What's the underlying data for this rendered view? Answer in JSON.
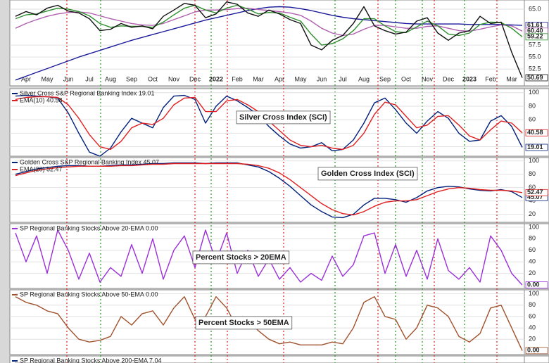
{
  "chart_data": [
    {
      "type": "line",
      "categories": [
        null,
        "Apr",
        null,
        "May",
        null,
        "Jun",
        null,
        "Jul",
        null,
        "Aug",
        null,
        "Sep",
        null,
        "Oct",
        null,
        "Nov",
        null,
        "Dec",
        null,
        "2022",
        null,
        "Feb",
        null,
        "Mar",
        null,
        "Apr",
        null,
        "May",
        null,
        "Jun",
        null,
        "Jul",
        null,
        "Aug",
        null,
        "Sep",
        null,
        "Oct",
        null,
        "Nov",
        null,
        "Dec",
        null,
        "2023",
        null,
        "Feb",
        null,
        "Mar",
        null
      ],
      "ylim": [
        49,
        66.9
      ],
      "yticks": [
        {
          "value": 65,
          "label": "65.0"
        },
        {
          "value": 57.5,
          "label": "57.5"
        },
        {
          "value": 55,
          "label": "55.0"
        },
        {
          "value": 52.5,
          "label": "52.5"
        }
      ],
      "series": [
        {
          "color": "#1a1a9a",
          "last_label": "61.61",
          "values": [
            50.2,
            51.0,
            51.8,
            52.6,
            53.4,
            54.2,
            55.0,
            55.7,
            56.4,
            57.1,
            57.8,
            58.5,
            59.1,
            59.7,
            60.3,
            60.9,
            61.5,
            62.1,
            62.7,
            63.2,
            63.7,
            64.2,
            64.7,
            65.1,
            65.4,
            65.5,
            65.4,
            65.1,
            64.7,
            64.2,
            63.7,
            63.3,
            63.0,
            62.8,
            62.6,
            62.4,
            62.2,
            62.0,
            61.9,
            61.9,
            61.9,
            61.9,
            61.9,
            61.8,
            61.8,
            61.8,
            61.8,
            61.7,
            61.61
          ]
        },
        {
          "color": "#b05fb0",
          "last_label": "60.40",
          "values": [
            61.0,
            62.0,
            62.8,
            63.5,
            64.0,
            64.3,
            64.4,
            64.2,
            63.6,
            63.0,
            62.5,
            62.0,
            61.7,
            61.6,
            62.0,
            62.8,
            63.6,
            64.4,
            64.8,
            64.8,
            64.9,
            65.1,
            65.2,
            64.9,
            64.7,
            64.5,
            64.2,
            63.7,
            62.5,
            61.0,
            60.0,
            59.5,
            59.8,
            60.8,
            61.6,
            61.6,
            61.3,
            61.0,
            61.0,
            61.4,
            61.5,
            61.0,
            60.5,
            60.4,
            60.8,
            61.3,
            61.7,
            61.5,
            60.4
          ]
        },
        {
          "color": "#2f8f2f",
          "last_label": "59.22",
          "values": [
            63.0,
            63.8,
            64.0,
            64.6,
            65.2,
            65.0,
            64.5,
            63.6,
            62.0,
            61.2,
            61.5,
            61.4,
            61.4,
            61.2,
            62.3,
            63.8,
            65.2,
            65.8,
            64.8,
            64.2,
            65.2,
            65.8,
            65.0,
            64.0,
            64.3,
            64.2,
            63.3,
            62.5,
            59.8,
            57.5,
            57.8,
            58.8,
            60.5,
            63.0,
            63.0,
            61.5,
            60.3,
            60.1,
            61.3,
            62.5,
            61.5,
            59.8,
            59.5,
            60.0,
            61.8,
            62.3,
            62.2,
            61.0,
            59.22
          ]
        },
        {
          "color": "#111111",
          "last_label": "50.69",
          "values": [
            63.5,
            64.5,
            63.8,
            65.2,
            65.8,
            64.6,
            64.2,
            63.0,
            60.5,
            60.8,
            62.0,
            61.2,
            61.5,
            60.9,
            63.5,
            64.8,
            66.2,
            65.8,
            63.2,
            64.0,
            66.5,
            66.0,
            64.2,
            63.5,
            64.8,
            64.0,
            62.8,
            62.0,
            57.5,
            56.5,
            58.5,
            59.5,
            62.0,
            65.5,
            61.5,
            60.5,
            59.8,
            60.2,
            62.5,
            63.2,
            60.0,
            58.5,
            60.0,
            60.5,
            63.5,
            62.0,
            62.3,
            56.0,
            50.69
          ]
        }
      ]
    },
    {
      "type": "line",
      "annotation": "Silver Cross Index (SCI)",
      "ylim": [
        6,
        106
      ],
      "yticks": [
        20,
        40,
        60,
        80,
        100
      ],
      "series": [
        {
          "name": "Silver Cross S&P Regional Banking Index 19.01",
          "color": "#00207a",
          "last_label": "19.01",
          "values": [
            95,
            96,
            95,
            94,
            92,
            70,
            40,
            12,
            6,
            18,
            42,
            62,
            55,
            48,
            78,
            95,
            96,
            90,
            55,
            80,
            95,
            88,
            78,
            67,
            50,
            36,
            24,
            18,
            20,
            26,
            14,
            16,
            30,
            55,
            85,
            92,
            75,
            55,
            40,
            58,
            72,
            62,
            40,
            28,
            30,
            58,
            66,
            50,
            19.01
          ]
        },
        {
          "name": "EMA(10) 40.58",
          "color": "#e02020",
          "last_label": "40.58",
          "values": [
            90,
            93,
            94,
            94,
            93,
            82,
            62,
            38,
            20,
            16,
            28,
            48,
            55,
            53,
            62,
            82,
            92,
            93,
            72,
            72,
            88,
            90,
            82,
            72,
            58,
            44,
            30,
            22,
            20,
            22,
            18,
            16,
            22,
            40,
            68,
            86,
            82,
            65,
            48,
            52,
            65,
            66,
            52,
            36,
            30,
            45,
            58,
            55,
            40.58
          ]
        }
      ]
    },
    {
      "type": "line",
      "annotation": "Golden Cross Index (SCI)",
      "ylim": [
        8,
        105
      ],
      "yticks": [
        20,
        40,
        60,
        80,
        100
      ],
      "series": [
        {
          "name": "Golden Cross S&P Regional Banking Index 45.07",
          "color": "#00207a",
          "last_label": "45.07",
          "values": [
            80,
            84,
            88,
            90,
            92,
            93,
            93,
            92,
            92,
            93,
            94,
            94,
            95,
            96,
            96,
            97,
            97,
            97,
            96,
            97,
            97,
            97,
            94,
            91,
            84,
            74,
            62,
            48,
            34,
            24,
            16,
            15,
            20,
            34,
            44,
            44,
            42,
            38,
            45,
            55,
            60,
            62,
            61,
            58,
            56,
            55,
            57,
            54,
            45.07
          ]
        },
        {
          "name": "EMA(20) 52.47",
          "color": "#e02020",
          "last_label": "52.47",
          "values": [
            78,
            82,
            86,
            88,
            90,
            91,
            92,
            92,
            92,
            92,
            93,
            93,
            94,
            95,
            95,
            96,
            96,
            96,
            96,
            96,
            96,
            96,
            95,
            93,
            89,
            82,
            72,
            60,
            48,
            36,
            27,
            21,
            19,
            24,
            32,
            38,
            40,
            40,
            42,
            48,
            54,
            58,
            60,
            59,
            57,
            56,
            56,
            55,
            52.47
          ]
        }
      ]
    },
    {
      "type": "line",
      "annotation": "Percent Stocks > 20EMA",
      "ylim": [
        -6,
        106
      ],
      "yticks": [
        20,
        40,
        60,
        80,
        100
      ],
      "series": [
        {
          "name": "SP Regional Banking Stocks Above 20-EMA 0.00",
          "color": "#9b30d9",
          "last_label": "0.00",
          "values": [
            90,
            40,
            85,
            20,
            95,
            60,
            10,
            55,
            5,
            30,
            15,
            70,
            20,
            80,
            10,
            60,
            85,
            30,
            95,
            40,
            90,
            20,
            60,
            15,
            45,
            10,
            30,
            5,
            20,
            8,
            50,
            15,
            35,
            85,
            90,
            20,
            70,
            15,
            60,
            10,
            80,
            25,
            10,
            30,
            5,
            85,
            60,
            20,
            0
          ]
        }
      ]
    },
    {
      "type": "line",
      "annotation": "Percent Stocks > 50EMA",
      "ylim": [
        -7,
        107
      ],
      "yticks": [
        20,
        40,
        60,
        80,
        100
      ],
      "series": [
        {
          "name": "SP Regional Banking Stocks Above 50-EMA 0.00",
          "color": "#a0522d",
          "last_label": "0.00",
          "values": [
            95,
            85,
            80,
            70,
            65,
            40,
            20,
            15,
            18,
            25,
            60,
            45,
            65,
            70,
            45,
            75,
            95,
            55,
            60,
            95,
            75,
            40,
            55,
            35,
            20,
            12,
            15,
            10,
            10,
            10,
            15,
            12,
            40,
            85,
            95,
            60,
            55,
            20,
            40,
            80,
            75,
            60,
            25,
            15,
            30,
            75,
            80,
            40,
            0
          ]
        }
      ]
    },
    {
      "type": "line",
      "series": [
        {
          "name": "SP Regional Banking Stocks Above 200-EMA 7.04",
          "color": "#00207a"
        }
      ]
    }
  ]
}
